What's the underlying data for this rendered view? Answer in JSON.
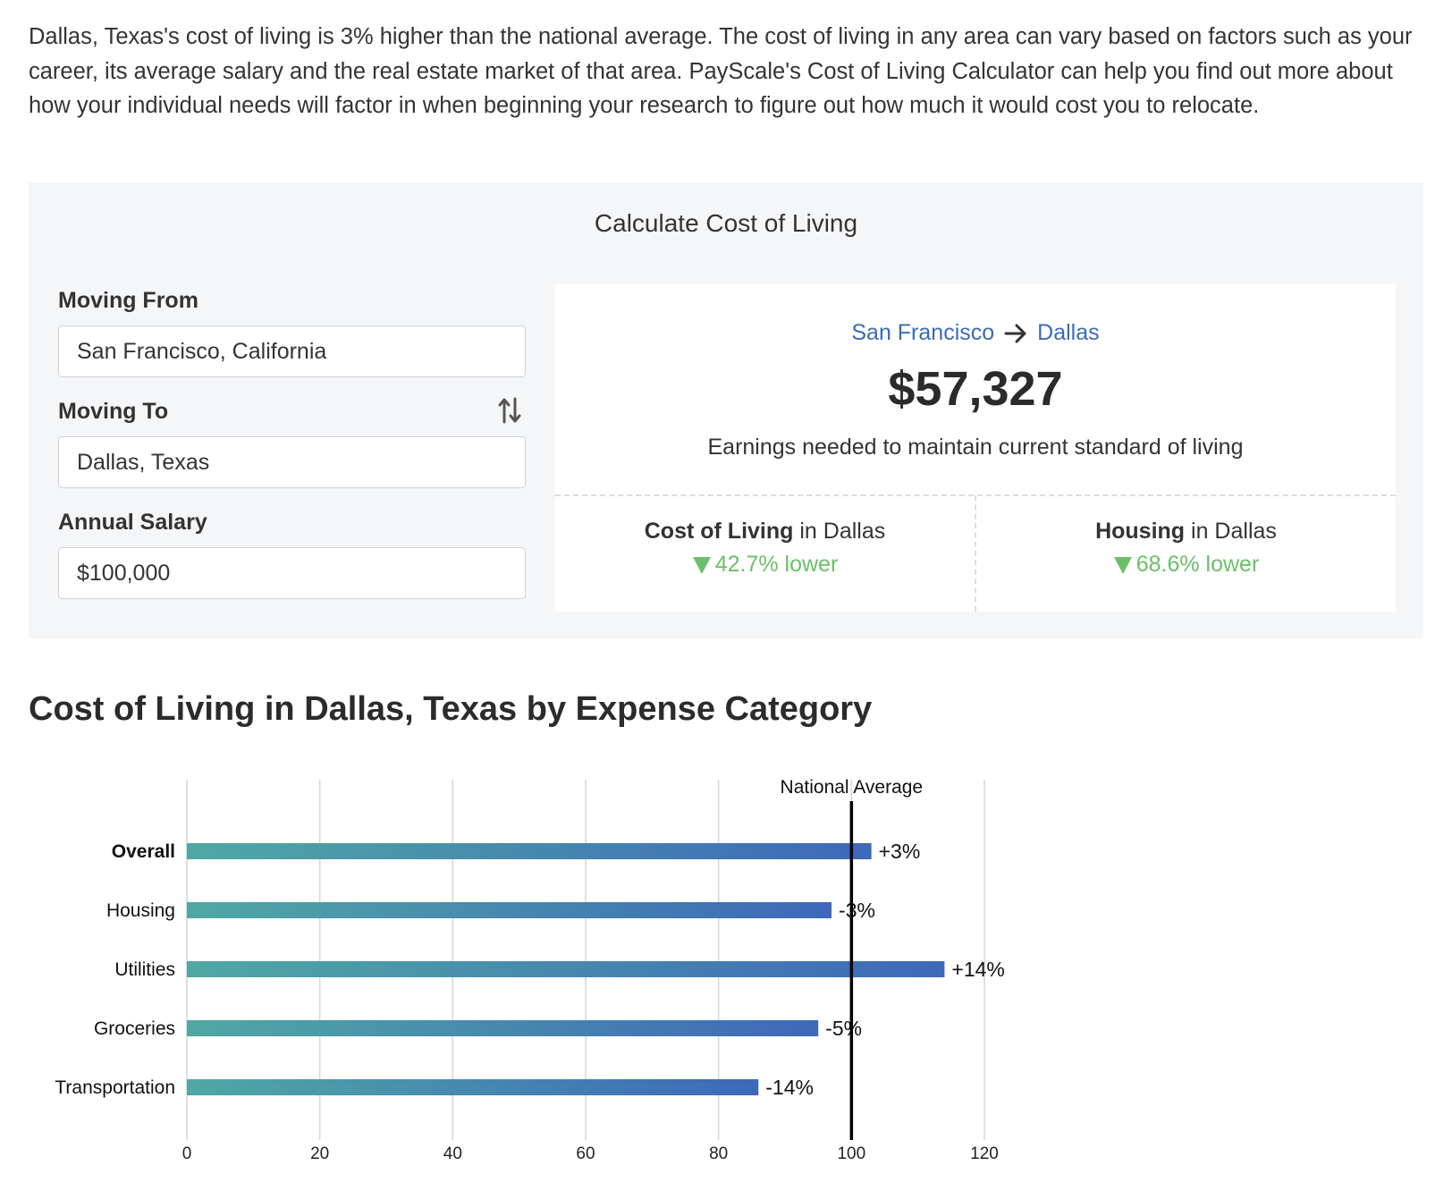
{
  "intro": {
    "text": "Dallas, Texas's cost of living is 3% higher than the national average. The cost of living in any area can vary based on factors such as your career, its average salary and the real estate market of that area. PayScale's Cost of Living Calculator can help you find out more about how your individual needs will factor in when beginning your research to figure out how much it would cost you to relocate."
  },
  "calculator": {
    "title": "Calculate Cost of Living",
    "moving_from_label": "Moving From",
    "moving_from_value": "San Francisco, California",
    "moving_to_label": "Moving To",
    "moving_to_value": "Dallas, Texas",
    "salary_label": "Annual Salary",
    "salary_value": "$100,000",
    "swap_icon": "swap-vertical-icon"
  },
  "result": {
    "from_city": "San Francisco",
    "to_city": "Dallas",
    "amount": "$57,327",
    "earnings_text": "Earnings needed to maintain current standard of living",
    "cost_of_living": {
      "label": "Cost of Living",
      "suffix": "in Dallas",
      "value": "42.7% lower"
    },
    "housing": {
      "label": "Housing",
      "suffix": "in Dallas",
      "value": "68.6% lower"
    },
    "down_color": "#6cbf6a",
    "link_color": "#3a6bb5"
  },
  "section_title": "Cost of Living in Dallas, Texas by Expense Category",
  "chart_data": {
    "type": "bar",
    "orientation": "horizontal",
    "categories": [
      "Overall",
      "Housing",
      "Utilities",
      "Groceries",
      "Transportation"
    ],
    "values": [
      103,
      97,
      114,
      95,
      86
    ],
    "data_labels": [
      "+3%",
      "-3%",
      "+14%",
      "-5%",
      "-14%"
    ],
    "bold_categories": [
      "Overall"
    ],
    "xlim": [
      0,
      120
    ],
    "xticks": [
      0,
      20,
      40,
      60,
      80,
      100,
      120
    ],
    "reference_line": {
      "value": 100,
      "label": "National Average"
    },
    "grid": true,
    "colors": {
      "start": "#4fa8a4",
      "end": "#3e68b9"
    }
  }
}
